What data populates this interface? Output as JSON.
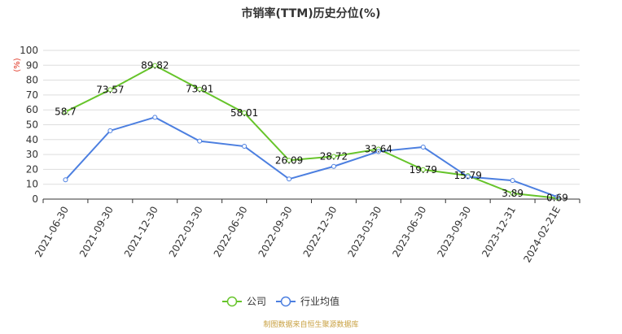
{
  "chart_data": {
    "type": "line",
    "title": "市销率(TTM)历史分位(%)",
    "y_unit": "(%)",
    "categories": [
      "2021-06-30",
      "2021-09-30",
      "2021-12-30",
      "2022-03-30",
      "2022-06-30",
      "2022-09-30",
      "2022-12-30",
      "2023-03-30",
      "2023-06-30",
      "2023-09-30",
      "2023-12-31",
      "2024-02-21E"
    ],
    "series": [
      {
        "name": "公司",
        "color": "#66c42a",
        "values": [
          58.7,
          73.57,
          89.82,
          73.91,
          58.01,
          26.09,
          28.72,
          33.64,
          19.79,
          15.79,
          3.89,
          0.69
        ],
        "labels": [
          "58.7",
          "73.57",
          "89.82",
          "73.91",
          "58.01",
          "26.09",
          "28.72",
          "33.64",
          "19.79",
          "15.79",
          "3.89",
          "0.69"
        ]
      },
      {
        "name": "行业均值",
        "color": "#4c7fe0",
        "values": [
          13,
          46,
          55,
          39,
          35.5,
          13.5,
          22,
          32,
          35,
          15,
          12.5,
          1.5
        ]
      }
    ],
    "ylim": [
      0,
      100
    ],
    "yticks": [
      "0",
      "10",
      "20",
      "30",
      "40",
      "50",
      "60",
      "70",
      "80",
      "90",
      "100"
    ],
    "grid": true,
    "legend_position": "bottom-center"
  },
  "source_note": "制图数据来自恒生聚源数据库"
}
